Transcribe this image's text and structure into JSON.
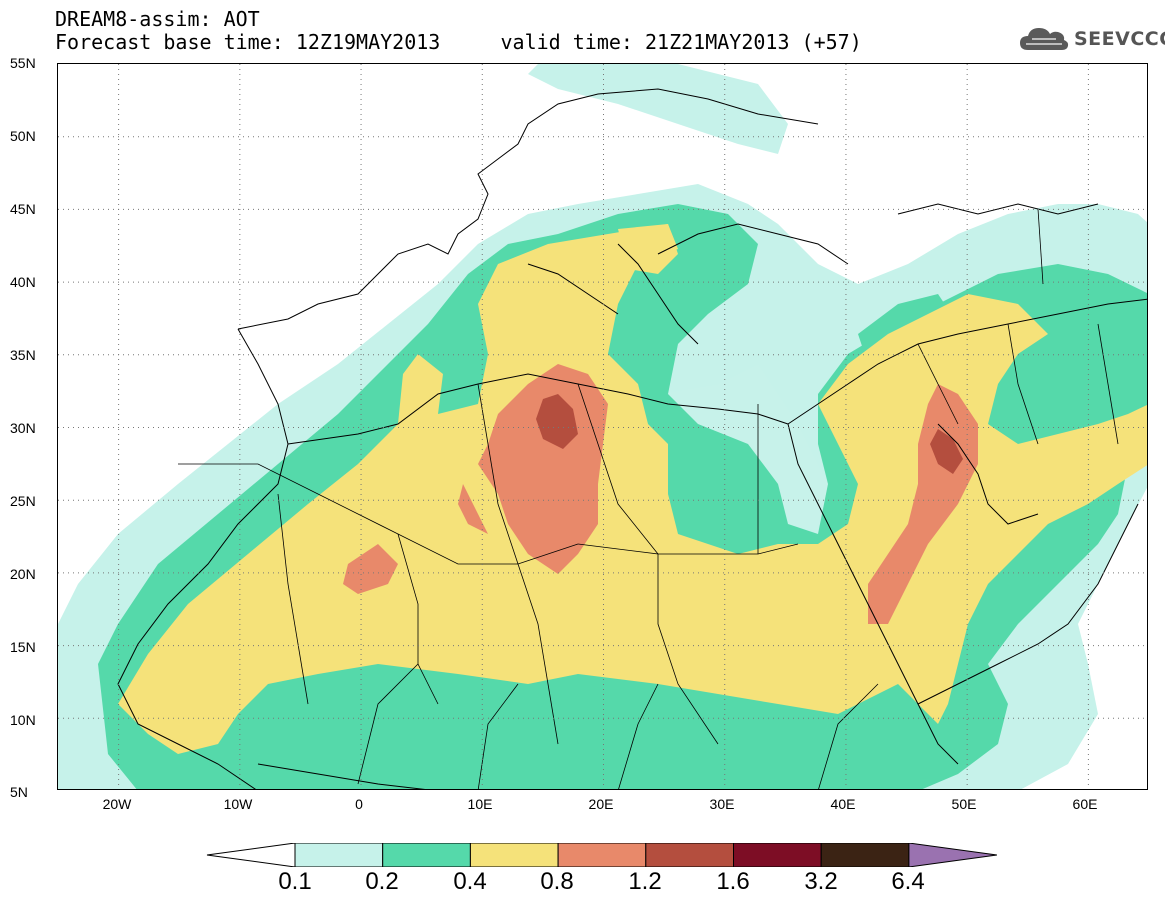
{
  "header": {
    "title_line1": "DREAM8-assim: AOT",
    "title_line2": "Forecast base time: 12Z19MAY2013     valid time: 21Z21MAY2013 (+57)"
  },
  "logo": {
    "icon": "cloud-icon",
    "text": "SEEVCCC"
  },
  "map": {
    "lon_range": [
      -25,
      65
    ],
    "lat_range": [
      5,
      55
    ],
    "grid": "dotted",
    "lat_ticks": [
      "55N",
      "50N",
      "45N",
      "40N",
      "35N",
      "30N",
      "25N",
      "20N",
      "15N",
      "10N",
      "5N"
    ],
    "lon_ticks": [
      "20W",
      "10W",
      "0",
      "10E",
      "20E",
      "30E",
      "40E",
      "50E",
      "60E"
    ]
  },
  "colorbar": {
    "labels": [
      "0.1",
      "0.2",
      "0.4",
      "0.8",
      "1.2",
      "1.6",
      "3.2",
      "6.4"
    ],
    "colors": [
      "#ffffff",
      "#c6f2ea",
      "#55d9aa",
      "#f5e27a",
      "#e8896a",
      "#b44e3e",
      "#7d0d25",
      "#3b2314",
      "#9a72b0"
    ]
  }
}
